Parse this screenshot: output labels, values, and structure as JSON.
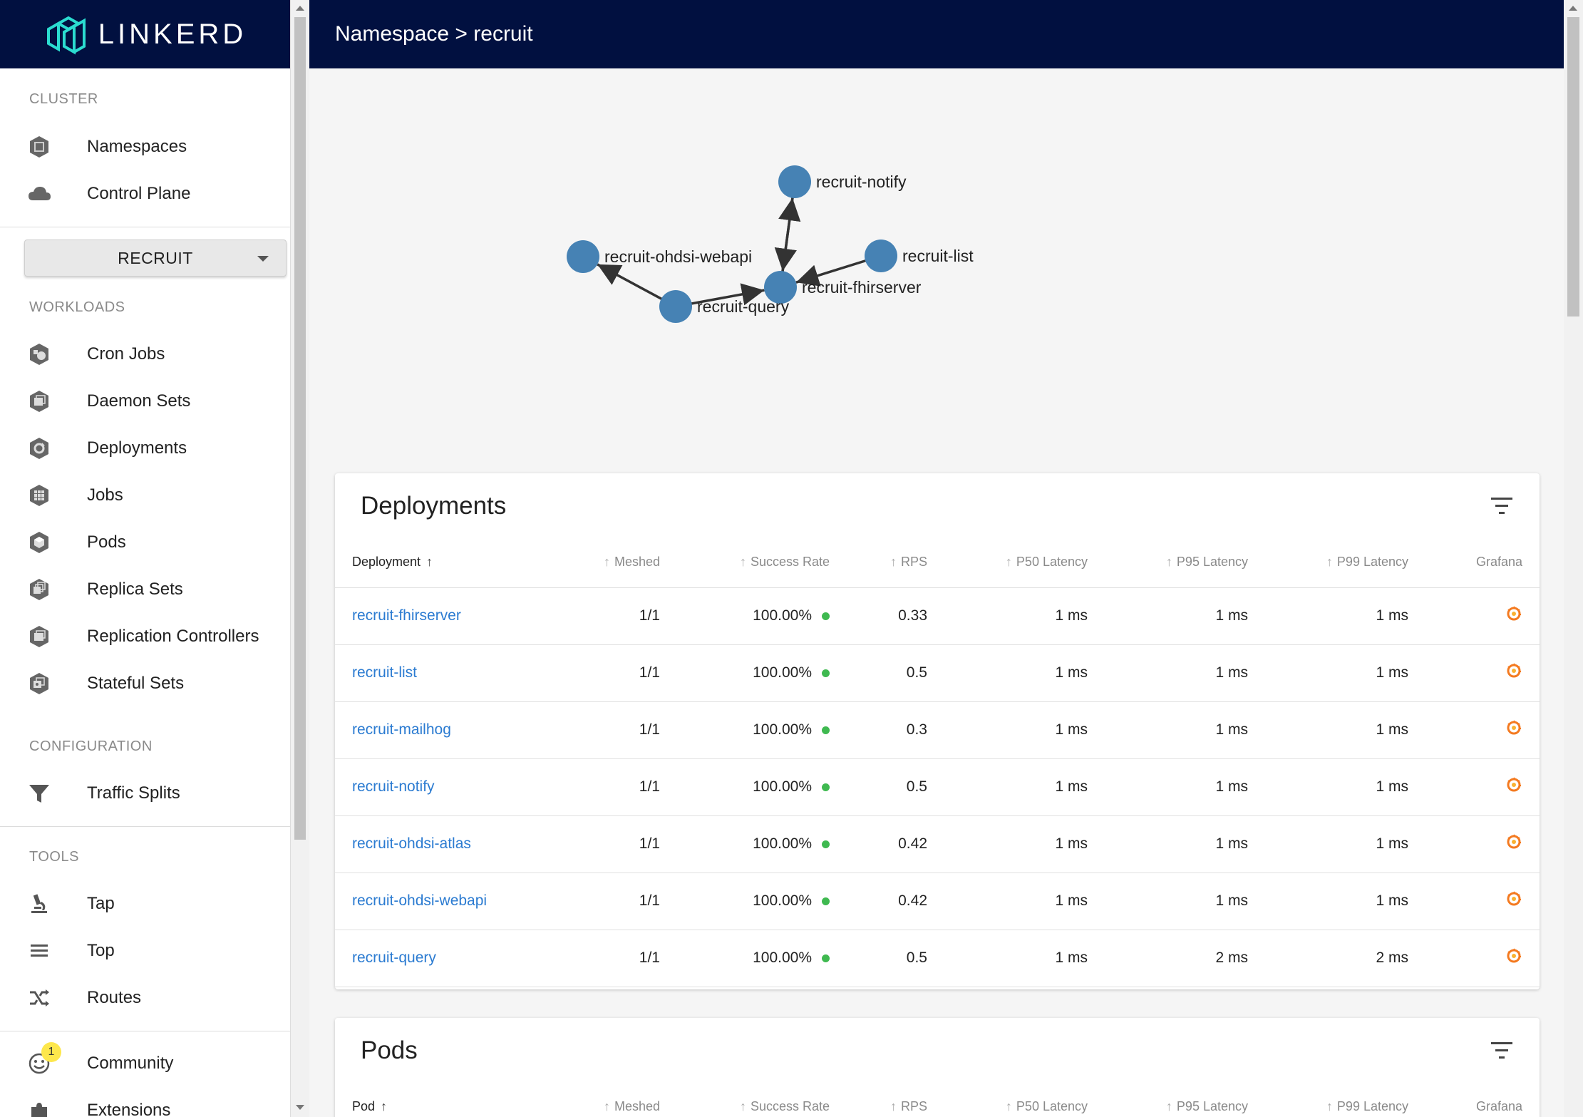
{
  "app": {
    "logo_text": "LINKERD"
  },
  "header": {
    "title": "Namespace > recruit"
  },
  "sidebar": {
    "cluster": {
      "title": "CLUSTER",
      "items": [
        {
          "label": "Namespaces",
          "icon": "namespace-icon"
        },
        {
          "label": "Control Plane",
          "icon": "cloud-icon"
        }
      ]
    },
    "namespace_select": {
      "value": "RECRUIT"
    },
    "workloads": {
      "title": "WORKLOADS",
      "items": [
        {
          "label": "Cron Jobs",
          "icon": "cronjob-icon"
        },
        {
          "label": "Daemon Sets",
          "icon": "daemonset-icon"
        },
        {
          "label": "Deployments",
          "icon": "deployment-icon"
        },
        {
          "label": "Jobs",
          "icon": "job-icon"
        },
        {
          "label": "Pods",
          "icon": "pod-icon"
        },
        {
          "label": "Replica Sets",
          "icon": "replicaset-icon"
        },
        {
          "label": "Replication Controllers",
          "icon": "replicationcontroller-icon"
        },
        {
          "label": "Stateful Sets",
          "icon": "statefulset-icon"
        }
      ]
    },
    "configuration": {
      "title": "CONFIGURATION",
      "items": [
        {
          "label": "Traffic Splits",
          "icon": "funnel-icon"
        }
      ]
    },
    "tools": {
      "title": "TOOLS",
      "items": [
        {
          "label": "Tap",
          "icon": "microscope-icon"
        },
        {
          "label": "Top",
          "icon": "list-icon"
        },
        {
          "label": "Routes",
          "icon": "shuffle-icon"
        }
      ]
    },
    "bottom": {
      "items": [
        {
          "label": "Community",
          "icon": "smiley-icon",
          "badge": "1"
        },
        {
          "label": "Extensions",
          "icon": "puzzle-icon"
        }
      ]
    }
  },
  "graph": {
    "nodes": [
      {
        "id": "recruit-notify",
        "label": "recruit-notify"
      },
      {
        "id": "recruit-ohdsi-webapi",
        "label": "recruit-ohdsi-webapi"
      },
      {
        "id": "recruit-list",
        "label": "recruit-list"
      },
      {
        "id": "recruit-fhirserver",
        "label": "recruit-fhirserver"
      },
      {
        "id": "recruit-query",
        "label": "recruit-query"
      }
    ],
    "edges": [
      {
        "from": "recruit-query",
        "to": "recruit-ohdsi-webapi"
      },
      {
        "from": "recruit-query",
        "to": "recruit-fhirserver"
      },
      {
        "from": "recruit-fhirserver",
        "to": "recruit-notify"
      },
      {
        "from": "recruit-notify",
        "to": "recruit-fhirserver"
      },
      {
        "from": "recruit-list",
        "to": "recruit-fhirserver"
      }
    ],
    "node_color": "#4682b4"
  },
  "deployments": {
    "title": "Deployments",
    "columns": {
      "deployment": "Deployment",
      "meshed": "Meshed",
      "success_rate": "Success Rate",
      "rps": "RPS",
      "p50": "P50 Latency",
      "p95": "P95 Latency",
      "p99": "P99 Latency",
      "grafana": "Grafana"
    },
    "rows": [
      {
        "name": "recruit-fhirserver",
        "meshed": "1/1",
        "success_rate": "100.00%",
        "rps": "0.33",
        "p50": "1 ms",
        "p95": "1 ms",
        "p99": "1 ms"
      },
      {
        "name": "recruit-list",
        "meshed": "1/1",
        "success_rate": "100.00%",
        "rps": "0.5",
        "p50": "1 ms",
        "p95": "1 ms",
        "p99": "1 ms"
      },
      {
        "name": "recruit-mailhog",
        "meshed": "1/1",
        "success_rate": "100.00%",
        "rps": "0.3",
        "p50": "1 ms",
        "p95": "1 ms",
        "p99": "1 ms"
      },
      {
        "name": "recruit-notify",
        "meshed": "1/1",
        "success_rate": "100.00%",
        "rps": "0.5",
        "p50": "1 ms",
        "p95": "1 ms",
        "p99": "1 ms"
      },
      {
        "name": "recruit-ohdsi-atlas",
        "meshed": "1/1",
        "success_rate": "100.00%",
        "rps": "0.42",
        "p50": "1 ms",
        "p95": "1 ms",
        "p99": "1 ms"
      },
      {
        "name": "recruit-ohdsi-webapi",
        "meshed": "1/1",
        "success_rate": "100.00%",
        "rps": "0.42",
        "p50": "1 ms",
        "p95": "1 ms",
        "p99": "1 ms"
      },
      {
        "name": "recruit-query",
        "meshed": "1/1",
        "success_rate": "100.00%",
        "rps": "0.5",
        "p50": "1 ms",
        "p95": "2 ms",
        "p99": "2 ms"
      }
    ],
    "success_color": "#3fb950",
    "link_color": "#2b7bd1"
  },
  "pods": {
    "title": "Pods",
    "columns": {
      "pod": "Pod",
      "meshed": "Meshed",
      "success_rate": "Success Rate",
      "rps": "RPS",
      "p50": "P50 Latency",
      "p95": "P95 Latency",
      "p99": "P99 Latency",
      "grafana": "Grafana"
    }
  }
}
